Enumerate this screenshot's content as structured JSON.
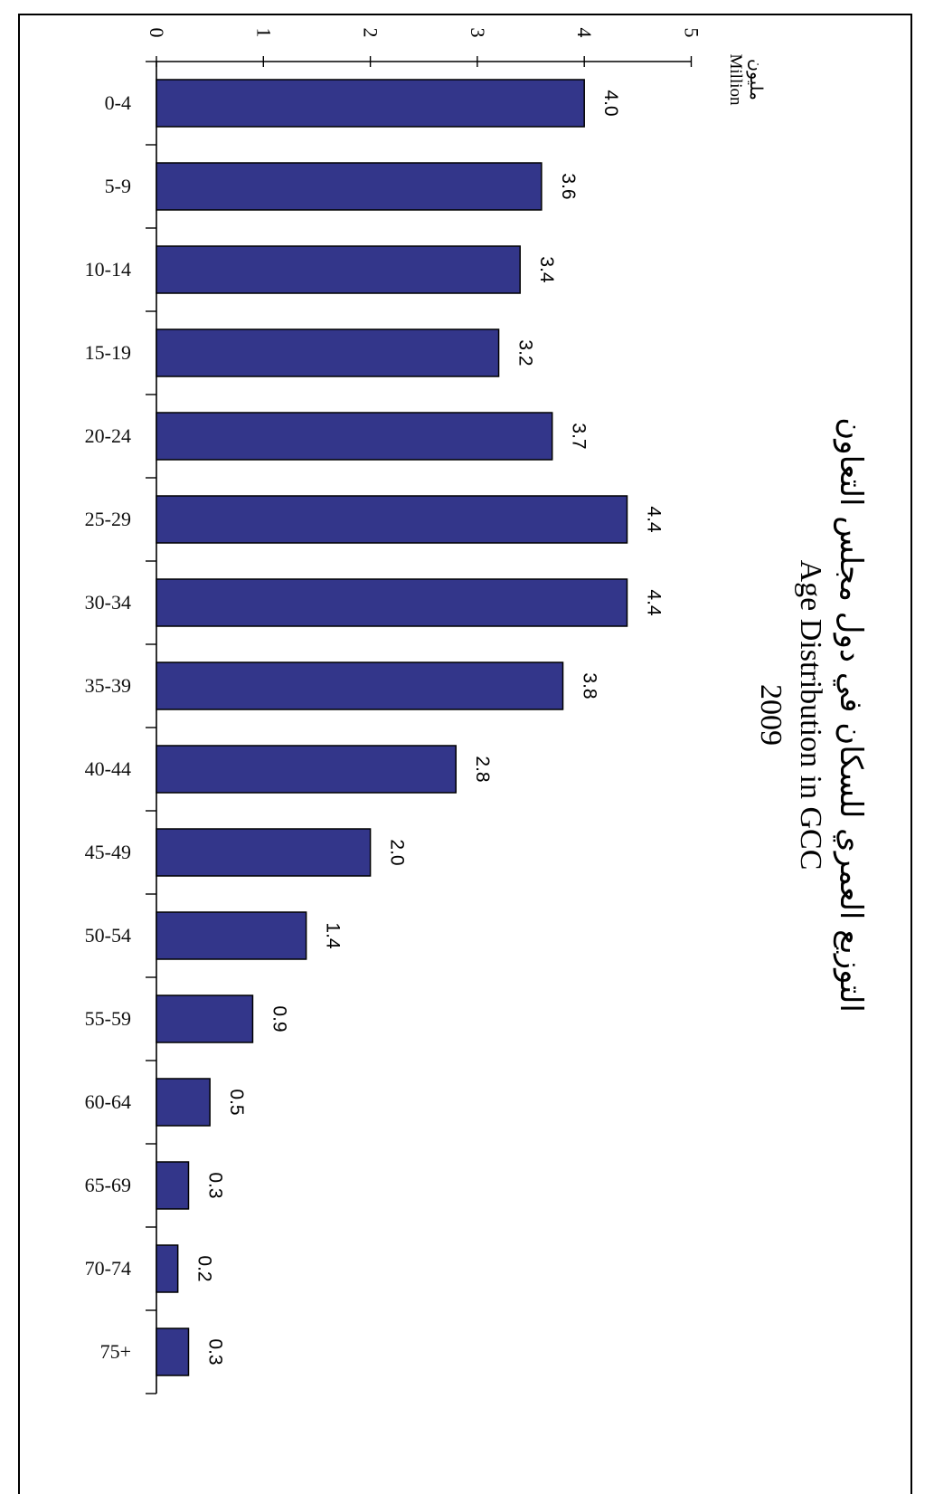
{
  "chart_data": {
    "type": "bar",
    "title_ar": "التوزيع العمري للسكان في دول مجلس التعاون",
    "title": "Age Distribution in GCC",
    "subtitle": "2009",
    "unit_ar": "مليون",
    "unit": "Million",
    "categories": [
      "0-4",
      "5-9",
      "10-14",
      "15-19",
      "20-24",
      "25-29",
      "30-34",
      "35-39",
      "40-44",
      "45-49",
      "50-54",
      "55-59",
      "60-64",
      "65-69",
      "70-74",
      "75+"
    ],
    "values": [
      4.0,
      3.6,
      3.4,
      3.2,
      3.7,
      4.4,
      4.4,
      3.8,
      2.8,
      2.0,
      1.4,
      0.9,
      0.5,
      0.3,
      0.2,
      0.3
    ],
    "value_labels": [
      "4.0",
      "3.6",
      "3.4",
      "3.2",
      "3.7",
      "4.4",
      "4.4",
      "3.8",
      "2.8",
      "2.0",
      "1.4",
      "0.9",
      "0.5",
      "0.3",
      "0.2",
      "0.3"
    ],
    "ylim": [
      0,
      5
    ],
    "ticks": [
      "0",
      "1",
      "2",
      "3",
      "4",
      "5"
    ],
    "bar_color": "#33368a",
    "grid": false
  }
}
